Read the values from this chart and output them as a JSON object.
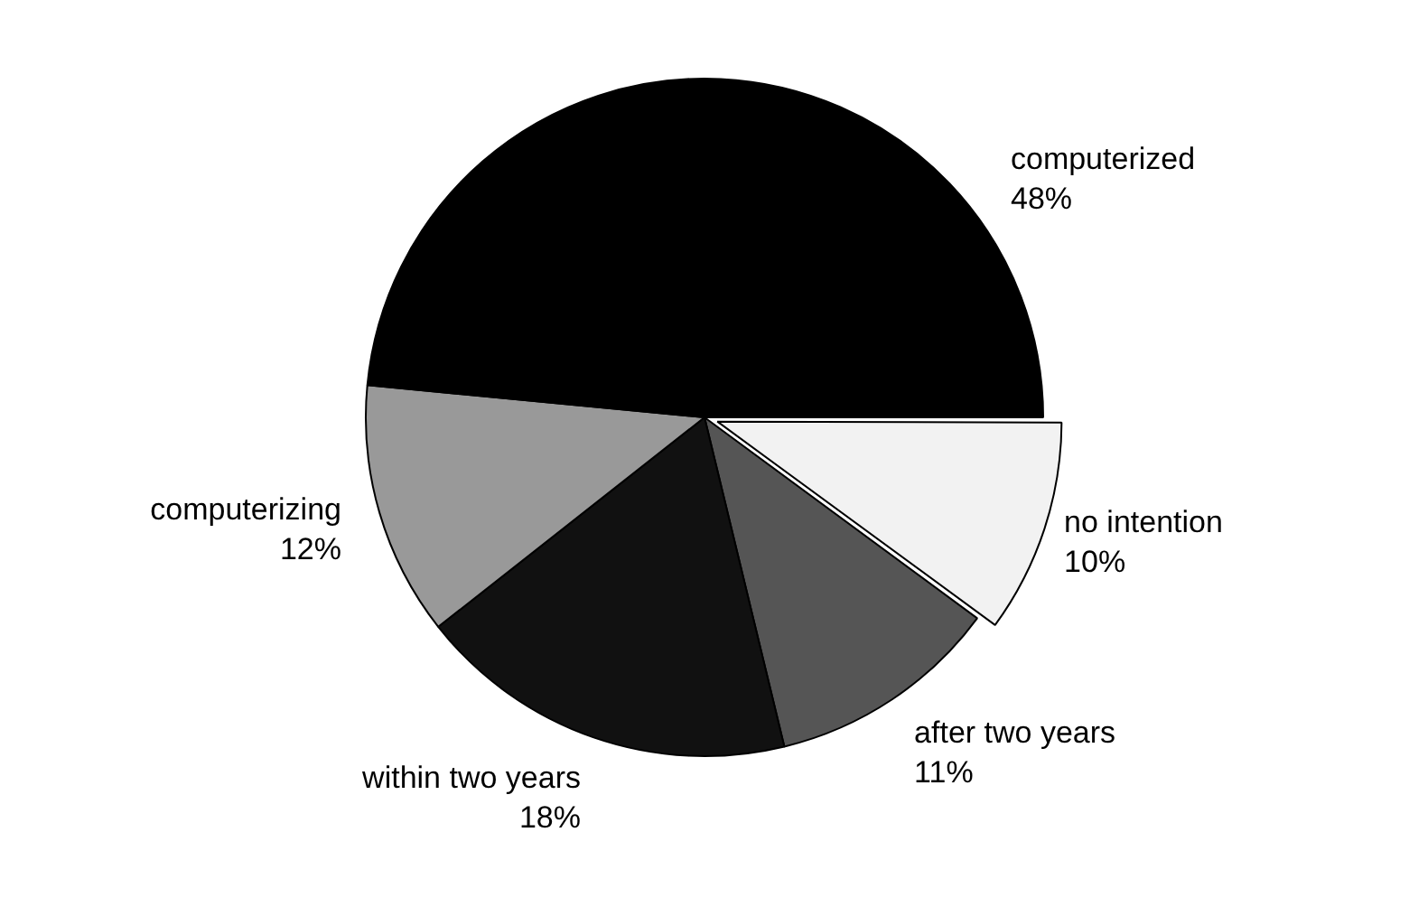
{
  "chart_data": {
    "type": "pie",
    "categories": [
      "no intention",
      "after two years",
      "within two years",
      "computerizing",
      "computerized"
    ],
    "values": [
      10,
      11,
      18,
      12,
      48
    ],
    "value_labels": [
      "10%",
      "11%",
      "18%",
      "12%",
      "48%"
    ],
    "colors": [
      "#f2f2f2",
      "#555555",
      "#111111",
      "#999999",
      "#000000"
    ]
  }
}
